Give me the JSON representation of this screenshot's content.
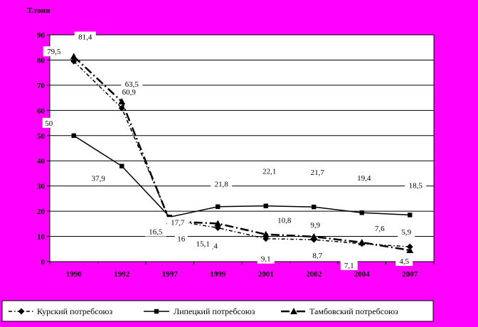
{
  "chart_data": {
    "type": "line",
    "title": "",
    "unit_label": "Т.тонн",
    "xlabel": "",
    "ylabel": "",
    "categories": [
      "1990",
      "1992",
      "1997",
      "1999",
      "2001",
      "2002",
      "2004",
      "2007"
    ],
    "yticks": [
      "0",
      "10",
      "20",
      "30",
      "40",
      "50",
      "60",
      "70",
      "80",
      "90"
    ],
    "ylim": [
      0,
      90
    ],
    "grid": true,
    "legend_position": "bottom",
    "series": [
      {
        "name": "Курский потребсоюз",
        "values": [
          79.5,
          60.9,
          16.5,
          13.4,
          9.1,
          8.7,
          7.1,
          5.9
        ],
        "labels": [
          "79,5",
          "60,9",
          "16,5",
          "13,4",
          "9,1",
          "8,7",
          "7,1",
          "5,9"
        ],
        "color": "#000000",
        "style": "dash-dot",
        "marker": "diamond"
      },
      {
        "name": "Липецкий потребсоюз",
        "values": [
          50,
          37.9,
          17.7,
          21.8,
          22.1,
          21.7,
          19.4,
          18.5
        ],
        "labels": [
          "50",
          "37,9",
          "17,7",
          "21,8",
          "22,1",
          "21,7",
          "19,4",
          "18,5"
        ],
        "color": "#000000",
        "style": "solid",
        "marker": "square"
      },
      {
        "name": "Тамбовский потребсоюз",
        "values": [
          81.4,
          63.5,
          16,
          15.1,
          10.8,
          9.9,
          7.6,
          4.5
        ],
        "labels": [
          "81,4",
          "63,5",
          "16",
          "15,1",
          "10,8",
          "9,9",
          "7,6",
          "4,5"
        ],
        "color": "#000000",
        "style": "long-dash-dot",
        "marker": "triangle"
      }
    ],
    "colors": {
      "background": "#FF00FF",
      "plot_area": "#FFFFFF",
      "label_box": "#FFFFFF"
    }
  }
}
